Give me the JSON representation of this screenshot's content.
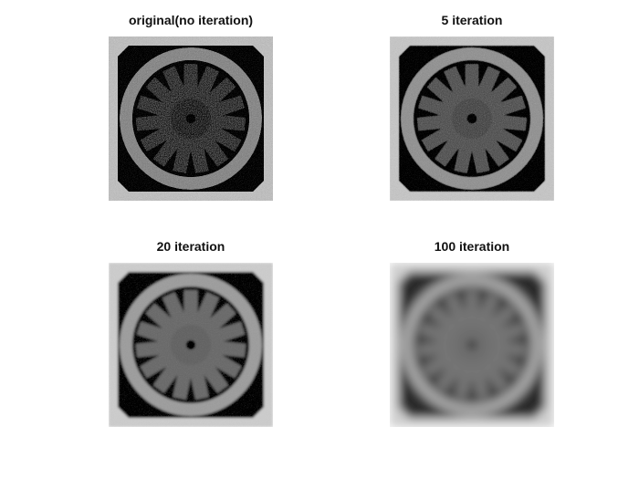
{
  "figure": {
    "panels": [
      {
        "title": "original(no iteration)",
        "noise": 0.55,
        "blur": 0
      },
      {
        "title": "5 iteration",
        "noise": 0.35,
        "blur": 0.5
      },
      {
        "title": "20 iteration",
        "noise": 0.12,
        "blur": 1.4
      },
      {
        "title": "100 iteration",
        "noise": 0.03,
        "blur": 5
      }
    ]
  }
}
